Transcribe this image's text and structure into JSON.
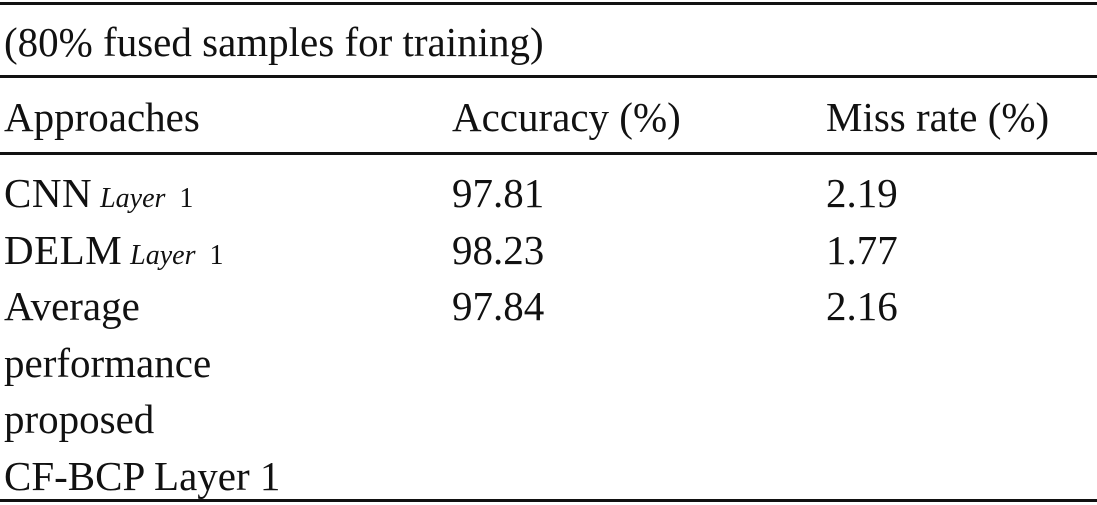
{
  "table": {
    "caption": "(80% fused samples for training)",
    "headers": {
      "approaches": "Approaches",
      "accuracy": "Accuracy (%)",
      "miss_rate": "Miss rate (%)"
    },
    "rows": [
      {
        "approach_main": "CNN",
        "approach_sub_italic": "Layer",
        "approach_sub_num": "1",
        "accuracy": "97.81",
        "miss_rate": "2.19"
      },
      {
        "approach_main": "DELM",
        "approach_sub_italic": "Layer",
        "approach_sub_num": "1",
        "accuracy": "98.23",
        "miss_rate": "1.77"
      },
      {
        "approach_lines": [
          "Average",
          "performance",
          "proposed",
          "CF-BCP Layer 1"
        ],
        "accuracy": "97.84",
        "miss_rate": "2.16"
      }
    ]
  }
}
